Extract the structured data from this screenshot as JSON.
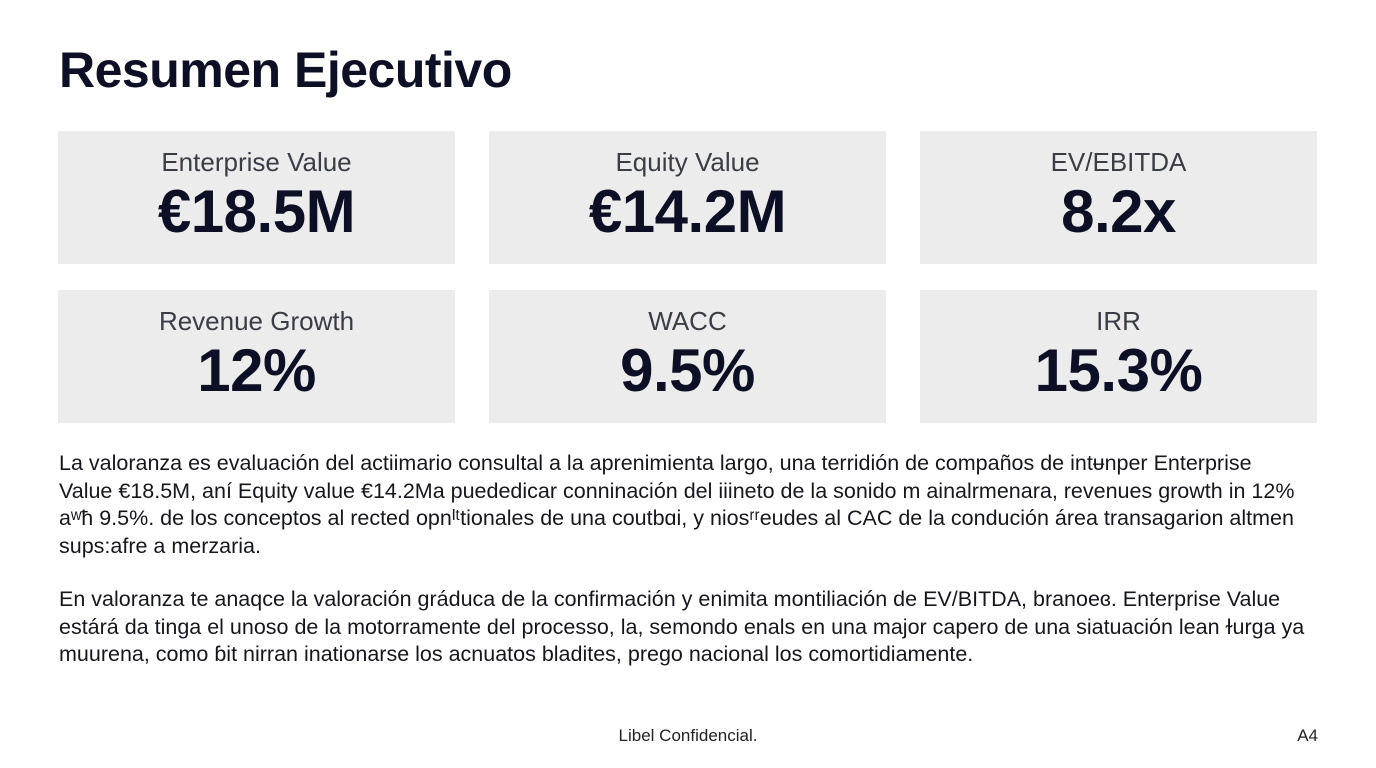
{
  "slide": {
    "title": "Resumen Ejecutivo",
    "kpis": [
      {
        "label": "Enterprise Value",
        "value": "€18.5M"
      },
      {
        "label": "Equity Value",
        "value": "€14.2M"
      },
      {
        "label": "EV/EBITDA",
        "value": "8.2x"
      },
      {
        "label": "Revenue Growth",
        "value": "12%"
      },
      {
        "label": "WACC",
        "value": "9.5%"
      },
      {
        "label": "IRR",
        "value": "15.3%"
      }
    ],
    "paragraphs": [
      "La valoranza es evaluación del actiimario consultal a la aprenimienta largo, una terridión de compaños de intᵾnper Enterprise Value €18.5M, aní Equity value €14.2Ma puededicar conninación del iiineto de la sonido m ainalrmenara, revenues growth in 12% aʷħ 9.5%. de los conceptos al rected opnᴵᵗtionales de una coutbɑi, y niosʳʳeudes al CAC de la condución área transagarion altmen sups:afre a merzaria.",
      "En valoranza te anaqce la valoración gráduca de la confirmación y enimita montiliación de EV/BITDA, branoeɞ. Enterprise Value estárá da tinga el unoso de la motorramente del processo, la, semondo enals en una major capero de una siatuación lean ɫurga ya muurena, como ɓit nirran inationarse los acnuatos bladites, prego nacional los comortidiamente."
    ],
    "footer": {
      "center_text": "Libel Confidencial.",
      "page_label": "A4"
    }
  }
}
